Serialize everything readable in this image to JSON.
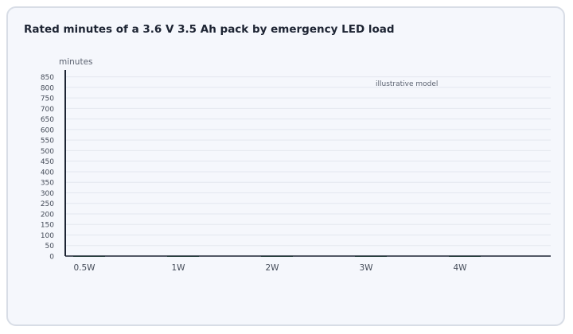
{
  "chart_data": {
    "type": "bar",
    "title": "Rated minutes of a 3.6 V 3.5 Ah pack by emergency LED load",
    "ylabel": "minutes",
    "xlabel": "",
    "annotation": "illustrative model",
    "categories": [
      "0.5W",
      "1W",
      "2W",
      "3W",
      "4W"
    ],
    "series": [
      {
        "values": [
          2,
          2,
          2,
          2,
          2
        ]
      }
    ],
    "ylim": [
      0,
      875
    ],
    "yticks": [
      0,
      50,
      100,
      150,
      200,
      250,
      300,
      350,
      400,
      450,
      500,
      550,
      600,
      650,
      700,
      750,
      800,
      850
    ],
    "grid": true,
    "legend": "none",
    "colors": {
      "bar": "#1f6b3a",
      "axis": "#1d2433",
      "grid": "#e3e7ef",
      "tick_text": "#444b58",
      "label_text": "#5b6270"
    }
  }
}
